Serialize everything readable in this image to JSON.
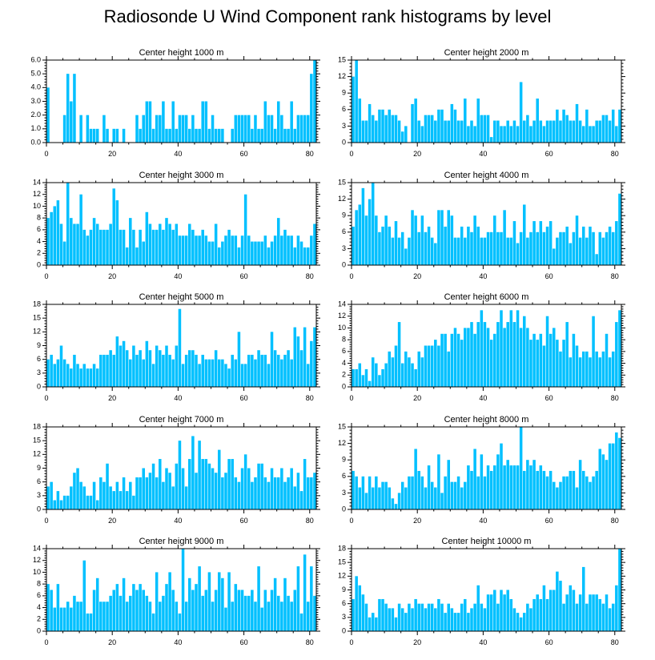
{
  "figure_title": "Radiosonde U Wind Component rank histograms by level",
  "colors": {
    "bar": "#00c0ff",
    "axis": "#000000"
  },
  "chart_data": [
    {
      "type": "bar",
      "title": "Center height 1000 m",
      "xlim": [
        0,
        82
      ],
      "ylim": [
        0,
        6
      ],
      "xticks": [
        0,
        20,
        40,
        60,
        80
      ],
      "yticks": [
        "0.0",
        "1.0",
        "2.0",
        "3.0",
        "4.0",
        "5.0",
        "6.0"
      ],
      "values": [
        4,
        0,
        0,
        0,
        0,
        2,
        5,
        3,
        5,
        0,
        2,
        0,
        2,
        1,
        1,
        1,
        0,
        2,
        1,
        0,
        1,
        1,
        0,
        1,
        0,
        0,
        0,
        2,
        1,
        2,
        3,
        3,
        1,
        2,
        2,
        3,
        1,
        1,
        3,
        1,
        2,
        2,
        2,
        1,
        2,
        1,
        1,
        3,
        3,
        1,
        2,
        1,
        1,
        1,
        0,
        0,
        1,
        2,
        2,
        2,
        2,
        2,
        1,
        2,
        1,
        1,
        3,
        2,
        2,
        1,
        3,
        2,
        1,
        1,
        3,
        1,
        2,
        2,
        2,
        2,
        5,
        6
      ]
    },
    {
      "type": "bar",
      "title": "Center height 2000 m",
      "xlim": [
        0,
        82
      ],
      "ylim": [
        0,
        15
      ],
      "xticks": [
        0,
        20,
        40,
        60,
        80
      ],
      "yticks": [
        "0",
        "3",
        "6",
        "9",
        "12",
        "15"
      ],
      "values": [
        12,
        15,
        8,
        4,
        4,
        7,
        5,
        4,
        6,
        6,
        5,
        6,
        5,
        5,
        4,
        2,
        3,
        0,
        7,
        8,
        4,
        3,
        5,
        5,
        5,
        4,
        6,
        6,
        4,
        4,
        7,
        6,
        4,
        4,
        8,
        3,
        4,
        3,
        8,
        5,
        5,
        5,
        1,
        4,
        4,
        3,
        3,
        4,
        3,
        4,
        3,
        11,
        4,
        5,
        3,
        4,
        8,
        4,
        3,
        4,
        4,
        4,
        6,
        4,
        6,
        5,
        4,
        4,
        7,
        4,
        3,
        6,
        3,
        3,
        4,
        4,
        5,
        5,
        4,
        6,
        3,
        6
      ]
    },
    {
      "type": "bar",
      "title": "Center height 3000 m",
      "xlim": [
        0,
        82
      ],
      "ylim": [
        0,
        14
      ],
      "xticks": [
        0,
        20,
        40,
        60,
        80
      ],
      "yticks": [
        "0",
        "2",
        "4",
        "6",
        "8",
        "10",
        "12",
        "14"
      ],
      "values": [
        8,
        9,
        10,
        11,
        7,
        4,
        14,
        8,
        7,
        7,
        12,
        6,
        5,
        6,
        8,
        7,
        6,
        6,
        6,
        7,
        13,
        11,
        6,
        6,
        3,
        8,
        6,
        3,
        6,
        4,
        9,
        7,
        6,
        6,
        7,
        6,
        8,
        7,
        6,
        7,
        5,
        5,
        5,
        7,
        6,
        5,
        5,
        6,
        5,
        4,
        4,
        7,
        3,
        4,
        5,
        6,
        5,
        5,
        3,
        5,
        12,
        5,
        4,
        4,
        4,
        4,
        5,
        3,
        4,
        5,
        8,
        5,
        6,
        5,
        5,
        3,
        5,
        4,
        3,
        3,
        5,
        7
      ]
    },
    {
      "type": "bar",
      "title": "Center height 4000 m",
      "xlim": [
        0,
        82
      ],
      "ylim": [
        0,
        15
      ],
      "xticks": [
        0,
        20,
        40,
        60,
        80
      ],
      "yticks": [
        "0",
        "3",
        "6",
        "9",
        "12",
        "15"
      ],
      "values": [
        7,
        10,
        11,
        14,
        9,
        12,
        15,
        9,
        6,
        7,
        9,
        7,
        5,
        8,
        5,
        6,
        3,
        5,
        10,
        9,
        6,
        9,
        6,
        7,
        5,
        4,
        10,
        10,
        7,
        10,
        9,
        5,
        5,
        7,
        5,
        7,
        6,
        9,
        7,
        5,
        5,
        6,
        6,
        9,
        6,
        6,
        10,
        5,
        5,
        8,
        4,
        6,
        11,
        5,
        6,
        8,
        6,
        8,
        6,
        7,
        8,
        3,
        5,
        6,
        6,
        7,
        4,
        6,
        9,
        5,
        7,
        5,
        7,
        6,
        2,
        6,
        5,
        6,
        7,
        6,
        8,
        13
      ]
    },
    {
      "type": "bar",
      "title": "Center height 5000 m",
      "xlim": [
        0,
        82
      ],
      "ylim": [
        0,
        18
      ],
      "xticks": [
        0,
        20,
        40,
        60,
        80
      ],
      "yticks": [
        "0",
        "3",
        "6",
        "9",
        "12",
        "15",
        "18"
      ],
      "values": [
        6,
        7,
        5,
        6,
        9,
        6,
        5,
        4,
        7,
        5,
        4,
        5,
        4,
        4,
        5,
        4,
        7,
        7,
        7,
        8,
        7,
        11,
        9,
        10,
        8,
        6,
        9,
        7,
        8,
        6,
        10,
        8,
        5,
        9,
        8,
        7,
        9,
        7,
        6,
        9,
        17,
        5,
        7,
        8,
        8,
        7,
        5,
        7,
        6,
        6,
        6,
        8,
        6,
        6,
        5,
        4,
        7,
        6,
        12,
        5,
        5,
        7,
        7,
        6,
        8,
        7,
        7,
        5,
        12,
        8,
        7,
        6,
        7,
        8,
        6,
        13,
        11,
        8,
        13,
        5,
        10,
        13
      ]
    },
    {
      "type": "bar",
      "title": "Center height 6000 m",
      "xlim": [
        0,
        82
      ],
      "ylim": [
        0,
        14
      ],
      "xticks": [
        0,
        20,
        40,
        60,
        80
      ],
      "yticks": [
        "0",
        "2",
        "4",
        "6",
        "8",
        "10",
        "12",
        "14"
      ],
      "values": [
        3,
        3,
        4,
        2,
        3,
        1,
        5,
        4,
        2,
        3,
        4,
        6,
        5,
        7,
        11,
        4,
        6,
        5,
        4,
        3,
        6,
        5,
        7,
        7,
        7,
        8,
        7,
        9,
        9,
        6,
        9,
        10,
        9,
        8,
        10,
        10,
        11,
        9,
        11,
        13,
        11,
        10,
        8,
        9,
        11,
        13,
        10,
        11,
        13,
        11,
        13,
        10,
        12,
        10,
        8,
        9,
        8,
        9,
        7,
        12,
        9,
        10,
        8,
        6,
        8,
        11,
        5,
        9,
        7,
        5,
        6,
        6,
        5,
        12,
        6,
        5,
        6,
        9,
        5,
        6,
        11,
        13
      ]
    },
    {
      "type": "bar",
      "title": "Center height 7000 m",
      "xlim": [
        0,
        82
      ],
      "ylim": [
        0,
        18
      ],
      "xticks": [
        0,
        20,
        40,
        60,
        80
      ],
      "yticks": [
        "0",
        "3",
        "6",
        "9",
        "12",
        "15",
        "18"
      ],
      "values": [
        5,
        6,
        2,
        4,
        2,
        3,
        3,
        5,
        8,
        9,
        6,
        5,
        3,
        3,
        6,
        2,
        7,
        6,
        10,
        5,
        4,
        6,
        4,
        7,
        4,
        6,
        3,
        7,
        7,
        9,
        7,
        8,
        10,
        7,
        11,
        6,
        9,
        8,
        5,
        10,
        15,
        9,
        5,
        11,
        16,
        8,
        15,
        11,
        11,
        10,
        9,
        8,
        13,
        7,
        8,
        11,
        11,
        7,
        6,
        9,
        12,
        9,
        6,
        7,
        10,
        10,
        7,
        6,
        9,
        7,
        7,
        9,
        6,
        7,
        9,
        5,
        8,
        4,
        11,
        7,
        7,
        8
      ]
    },
    {
      "type": "bar",
      "title": "Center height 8000 m",
      "xlim": [
        0,
        82
      ],
      "ylim": [
        0,
        15
      ],
      "xticks": [
        0,
        20,
        40,
        60,
        80
      ],
      "yticks": [
        "0",
        "3",
        "6",
        "9",
        "12",
        "15"
      ],
      "values": [
        7,
        6,
        4,
        6,
        3,
        6,
        4,
        6,
        4,
        5,
        5,
        4,
        2,
        1,
        3,
        5,
        4,
        6,
        6,
        11,
        7,
        6,
        4,
        8,
        5,
        4,
        10,
        3,
        6,
        9,
        5,
        5,
        6,
        4,
        5,
        8,
        7,
        11,
        6,
        10,
        6,
        8,
        7,
        8,
        10,
        12,
        8,
        9,
        8,
        8,
        8,
        15,
        7,
        9,
        8,
        9,
        7,
        8,
        7,
        6,
        7,
        5,
        4,
        5,
        6,
        6,
        7,
        7,
        4,
        9,
        7,
        6,
        5,
        6,
        7,
        11,
        10,
        9,
        12,
        12,
        14,
        13
      ]
    },
    {
      "type": "bar",
      "title": "Center height 9000 m",
      "xlim": [
        0,
        82
      ],
      "ylim": [
        0,
        14
      ],
      "xticks": [
        0,
        20,
        40,
        60,
        80
      ],
      "yticks": [
        "0",
        "2",
        "4",
        "6",
        "8",
        "10",
        "12",
        "14"
      ],
      "values": [
        8,
        7,
        4,
        8,
        4,
        4,
        5,
        4,
        6,
        5,
        5,
        12,
        3,
        3,
        7,
        9,
        5,
        5,
        5,
        6,
        7,
        8,
        6,
        9,
        5,
        6,
        8,
        7,
        8,
        7,
        6,
        5,
        3,
        10,
        5,
        6,
        8,
        10,
        7,
        5,
        3,
        14,
        5,
        9,
        7,
        8,
        11,
        6,
        7,
        10,
        5,
        7,
        10,
        9,
        4,
        10,
        5,
        8,
        7,
        7,
        6,
        6,
        7,
        5,
        11,
        4,
        7,
        5,
        7,
        9,
        6,
        5,
        9,
        6,
        5,
        7,
        11,
        3,
        13,
        5,
        11,
        6
      ]
    },
    {
      "type": "bar",
      "title": "Center height 10000 m",
      "xlim": [
        0,
        82
      ],
      "ylim": [
        0,
        18
      ],
      "xticks": [
        0,
        20,
        40,
        60,
        80
      ],
      "yticks": [
        "0",
        "3",
        "6",
        "9",
        "12",
        "15",
        "18"
      ],
      "values": [
        7,
        12,
        10,
        8,
        6,
        3,
        4,
        3,
        7,
        7,
        6,
        5,
        5,
        3,
        6,
        5,
        4,
        6,
        5,
        7,
        6,
        6,
        5,
        6,
        6,
        5,
        7,
        6,
        4,
        6,
        5,
        4,
        4,
        6,
        7,
        4,
        5,
        6,
        10,
        6,
        5,
        8,
        8,
        9,
        6,
        9,
        8,
        9,
        7,
        5,
        4,
        3,
        4,
        6,
        5,
        7,
        8,
        7,
        10,
        7,
        9,
        9,
        13,
        11,
        6,
        8,
        10,
        9,
        6,
        8,
        14,
        6,
        8,
        8,
        8,
        7,
        6,
        8,
        5,
        6,
        10,
        18
      ]
    }
  ]
}
